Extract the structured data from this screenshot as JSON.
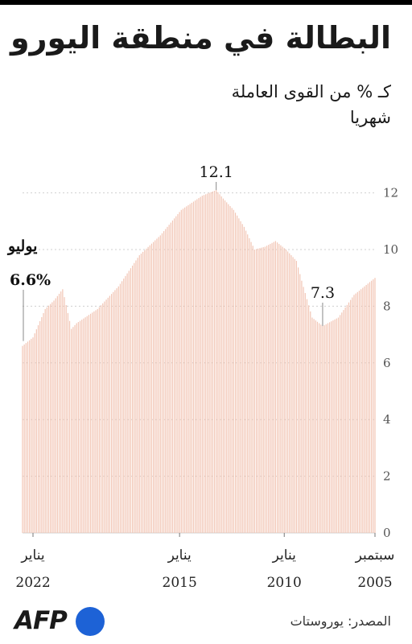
{
  "header": {
    "title": "البطالة في منطقة اليورو",
    "subtitle_line1": "كـ % من القوى العاملة",
    "subtitle_line2": "شهريا"
  },
  "chart_data": {
    "type": "bar",
    "title": "البطالة في منطقة اليورو",
    "subtitle": "كـ % من القوى العاملة — شهريا",
    "unit": "%",
    "frequency": "monthly",
    "x_start": "2005-09",
    "x_end": "2022-07",
    "x_direction": "right-to-left",
    "ylim": [
      0,
      12.5
    ],
    "yticks": [
      0,
      2,
      4,
      6,
      8,
      10,
      12
    ],
    "grid": true,
    "bar_color": "#f2c5b4",
    "xtick_labels": [
      {
        "date": "2005-09",
        "line1": "سبتمبر",
        "line2": "2005"
      },
      {
        "date": "2010-01",
        "line1": "يناير",
        "line2": "2010"
      },
      {
        "date": "2015-01",
        "line1": "يناير",
        "line2": "2015"
      },
      {
        "date": "2022-01",
        "line1": "يناير",
        "line2": "2022"
      }
    ],
    "annotations": [
      {
        "date": "2008-03",
        "value": 7.3,
        "text": "7.3"
      },
      {
        "date": "2013-04",
        "value": 12.1,
        "text": "12.1"
      },
      {
        "date": "2022-07",
        "value": 6.6,
        "label": "يوليو",
        "text": "6.6%"
      }
    ],
    "anchors": [
      [
        "2005-09",
        9.0
      ],
      [
        "2006-09",
        8.4
      ],
      [
        "2007-06",
        7.6
      ],
      [
        "2008-03",
        7.3
      ],
      [
        "2008-09",
        7.6
      ],
      [
        "2009-03",
        8.9
      ],
      [
        "2009-06",
        9.6
      ],
      [
        "2009-12",
        10.0
      ],
      [
        "2010-06",
        10.3
      ],
      [
        "2010-12",
        10.1
      ],
      [
        "2011-06",
        10.0
      ],
      [
        "2011-12",
        10.8
      ],
      [
        "2012-06",
        11.4
      ],
      [
        "2012-12",
        11.8
      ],
      [
        "2013-04",
        12.1
      ],
      [
        "2013-12",
        11.9
      ],
      [
        "2014-12",
        11.4
      ],
      [
        "2015-12",
        10.5
      ],
      [
        "2016-12",
        9.8
      ],
      [
        "2017-12",
        8.7
      ],
      [
        "2018-12",
        7.9
      ],
      [
        "2019-12",
        7.4
      ],
      [
        "2020-03",
        7.2
      ],
      [
        "2020-08",
        8.6
      ],
      [
        "2021-01",
        8.2
      ],
      [
        "2021-06",
        7.9
      ],
      [
        "2022-01",
        6.9
      ],
      [
        "2022-07",
        6.6
      ]
    ]
  },
  "footer": {
    "logo_text": "AFP",
    "source": "المصدر: يوروستات"
  }
}
